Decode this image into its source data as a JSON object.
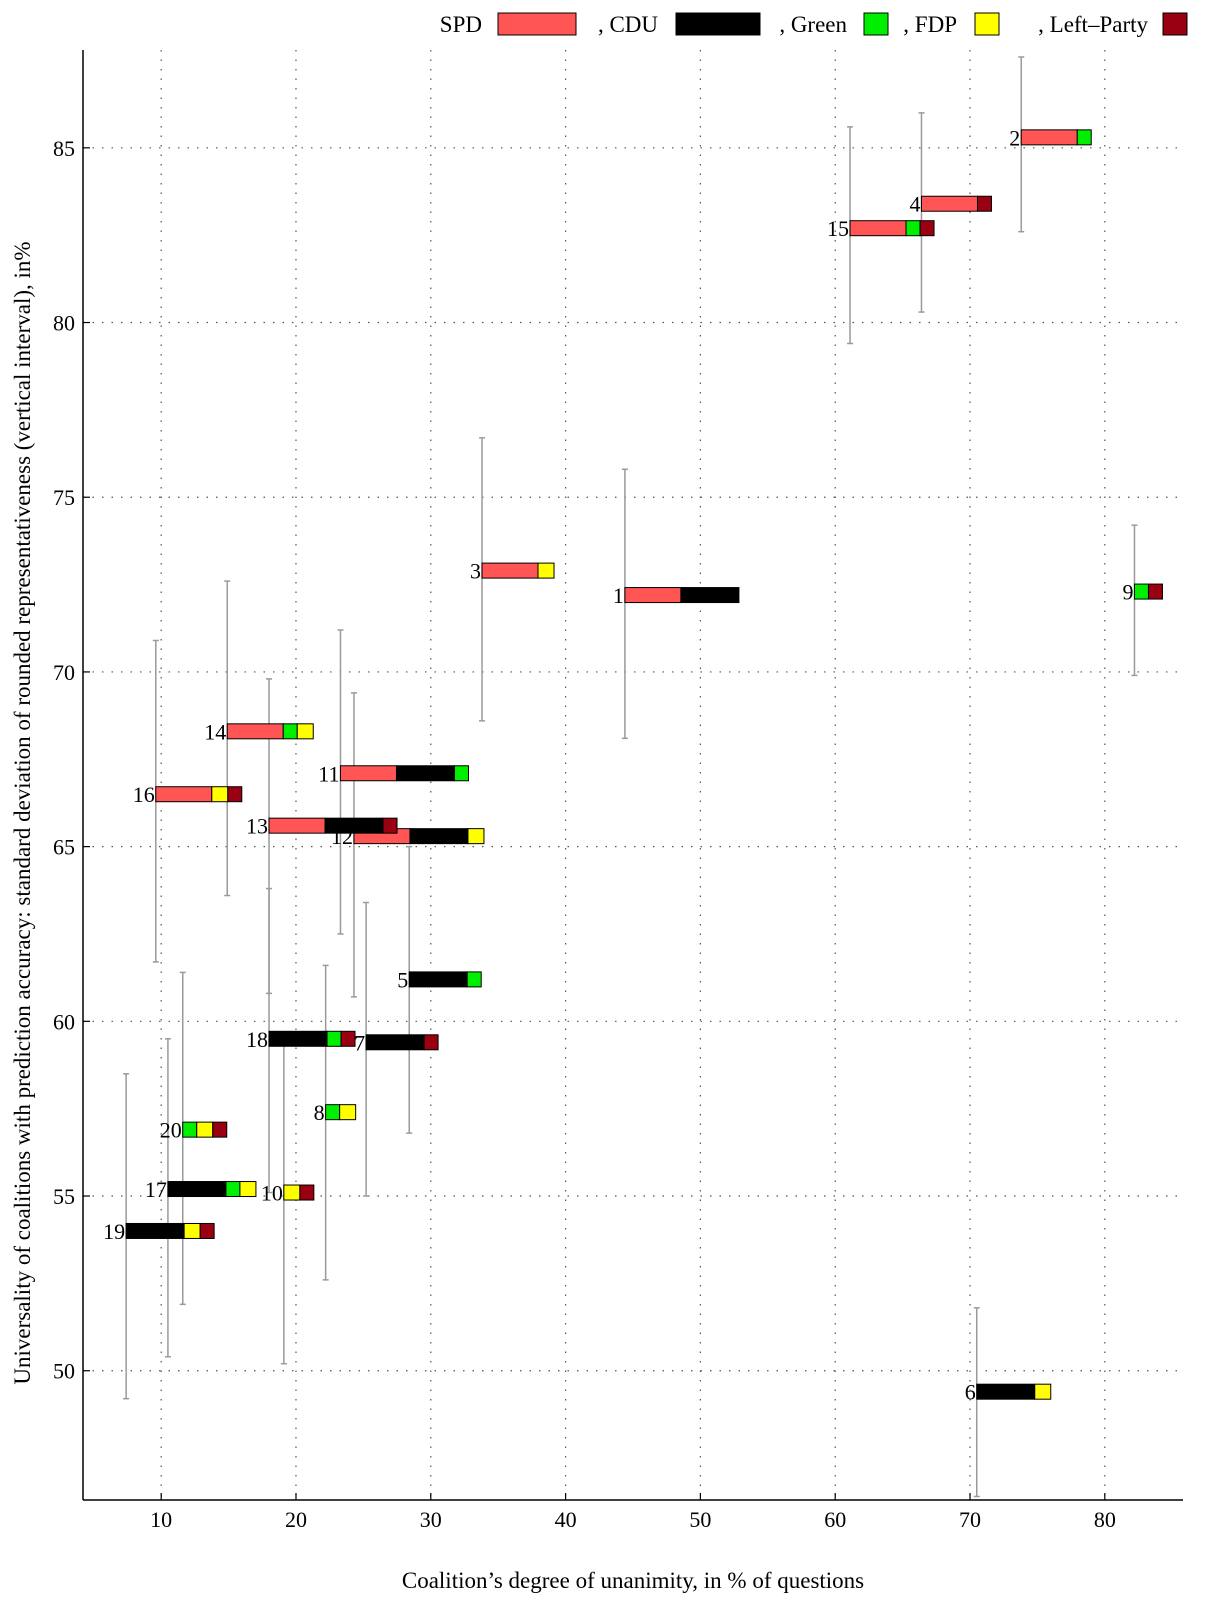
{
  "chart_data": {
    "type": "scatter",
    "title": "",
    "xlabel": "Coalition’s degree of unanimity, in % of questions",
    "ylabel": "Universality of coalitions with prediction accuracy: standard deviation of rounded representativeness (vertical interval), in%",
    "xlim": [
      4.2,
      85.8
    ],
    "ylim": [
      46.3,
      87.8
    ],
    "xticks": [
      10,
      20,
      30,
      40,
      50,
      60,
      70,
      80
    ],
    "yticks": [
      50,
      55,
      60,
      65,
      70,
      75,
      80,
      85
    ],
    "grid": true,
    "legend_placement": "top-right (above plot)",
    "parties": [
      {
        "key": "SPD",
        "label": "SPD",
        "color": "#ff5555"
      },
      {
        "key": "CDU",
        "label": ", CDU",
        "color": "#000000"
      },
      {
        "key": "Green",
        "label": ", Green",
        "color": "#00ee00"
      },
      {
        "key": "FDP",
        "label": ", FDP",
        "color": "#ffff00"
      },
      {
        "key": "Left",
        "label": ", Left–Party",
        "color": "#990011"
      }
    ],
    "coalitions": [
      {
        "label": "1",
        "x": 44.4,
        "y": 72.2,
        "ylow": 68.1,
        "yhigh": 75.8,
        "parties": [
          "SPD",
          "CDU"
        ]
      },
      {
        "label": "2",
        "x": 73.8,
        "y": 85.3,
        "ylow": 82.6,
        "yhigh": 87.6,
        "parties": [
          "SPD",
          "Green"
        ]
      },
      {
        "label": "3",
        "x": 33.8,
        "y": 72.9,
        "ylow": 68.6,
        "yhigh": 76.7,
        "parties": [
          "SPD",
          "FDP"
        ]
      },
      {
        "label": "4",
        "x": 66.4,
        "y": 83.4,
        "ylow": 80.3,
        "yhigh": 86.0,
        "parties": [
          "SPD",
          "Left"
        ]
      },
      {
        "label": "5",
        "x": 28.4,
        "y": 61.2,
        "ylow": 56.8,
        "yhigh": 65.0,
        "parties": [
          "CDU",
          "Green"
        ]
      },
      {
        "label": "6",
        "x": 70.5,
        "y": 49.4,
        "ylow": 46.4,
        "yhigh": 51.8,
        "parties": [
          "CDU",
          "FDP"
        ]
      },
      {
        "label": "7",
        "x": 25.2,
        "y": 59.4,
        "ylow": 55.0,
        "yhigh": 63.4,
        "parties": [
          "CDU",
          "Left"
        ]
      },
      {
        "label": "8",
        "x": 22.2,
        "y": 57.4,
        "ylow": 52.6,
        "yhigh": 61.6,
        "parties": [
          "Green",
          "FDP"
        ]
      },
      {
        "label": "9",
        "x": 82.2,
        "y": 72.3,
        "ylow": 69.9,
        "yhigh": 74.2,
        "parties": [
          "Green",
          "Left"
        ]
      },
      {
        "label": "10",
        "x": 19.1,
        "y": 55.1,
        "ylow": 50.2,
        "yhigh": 59.3,
        "parties": [
          "FDP",
          "Left"
        ]
      },
      {
        "label": "11",
        "x": 23.3,
        "y": 67.1,
        "ylow": 62.5,
        "yhigh": 71.2,
        "parties": [
          "SPD",
          "CDU",
          "Green"
        ]
      },
      {
        "label": "12",
        "x": 24.3,
        "y": 65.3,
        "ylow": 60.7,
        "yhigh": 69.4,
        "parties": [
          "SPD",
          "CDU",
          "FDP"
        ]
      },
      {
        "label": "13",
        "x": 18.0,
        "y": 65.6,
        "ylow": 60.8,
        "yhigh": 69.8,
        "parties": [
          "SPD",
          "CDU",
          "Left"
        ]
      },
      {
        "label": "14",
        "x": 14.9,
        "y": 68.3,
        "ylow": 63.6,
        "yhigh": 72.6,
        "parties": [
          "SPD",
          "Green",
          "FDP"
        ]
      },
      {
        "label": "15",
        "x": 61.1,
        "y": 82.7,
        "ylow": 79.4,
        "yhigh": 85.6,
        "parties": [
          "SPD",
          "Green",
          "Left"
        ]
      },
      {
        "label": "16",
        "x": 9.6,
        "y": 66.5,
        "ylow": 61.7,
        "yhigh": 70.9,
        "parties": [
          "SPD",
          "FDP",
          "Left"
        ]
      },
      {
        "label": "17",
        "x": 10.5,
        "y": 55.2,
        "ylow": 50.4,
        "yhigh": 59.5,
        "parties": [
          "CDU",
          "Green",
          "FDP"
        ]
      },
      {
        "label": "18",
        "x": 18.0,
        "y": 59.5,
        "ylow": 55.1,
        "yhigh": 63.8,
        "parties": [
          "CDU",
          "Green",
          "Left"
        ]
      },
      {
        "label": "19",
        "x": 7.4,
        "y": 54.0,
        "ylow": 49.2,
        "yhigh": 58.5,
        "parties": [
          "CDU",
          "FDP",
          "Left"
        ]
      },
      {
        "label": "20",
        "x": 11.6,
        "y": 56.9,
        "ylow": 51.9,
        "yhigh": 61.4,
        "parties": [
          "Green",
          "FDP",
          "Left"
        ]
      }
    ]
  }
}
